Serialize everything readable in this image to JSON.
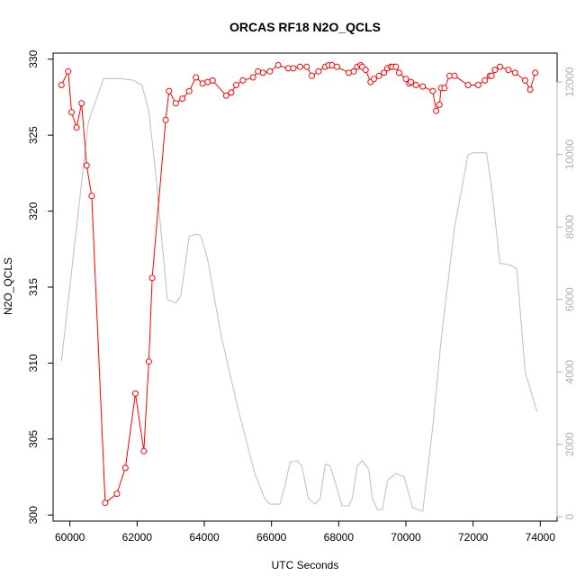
{
  "chart_data": {
    "type": "line",
    "title": "ORCAS RF18 N2O_QCLS",
    "xlabel": "UTC Seconds",
    "ylabel": "N2O_QCLS",
    "xlim": [
      59500,
      74500
    ],
    "ylim": [
      299.6,
      330.4
    ],
    "y2lim": [
      -120,
      12800
    ],
    "x_ticks": [
      60000,
      62000,
      64000,
      66000,
      68000,
      70000,
      72000,
      74000
    ],
    "y_ticks": [
      300,
      305,
      310,
      315,
      320,
      325,
      330
    ],
    "y2_ticks": [
      0,
      2000,
      4000,
      6000,
      8000,
      10000,
      12000
    ],
    "colors": {
      "n2o": "#ff0000",
      "altitude": "#bebebe",
      "axis": "#000000",
      "right_axis": "#b0b0b0"
    },
    "series": [
      {
        "id": "n2o",
        "style": "line+points",
        "axis": "left",
        "x": [
          59750,
          59950,
          60050,
          60200,
          60350,
          60500,
          60650,
          61050,
          61400,
          61650,
          61950,
          62200,
          62350,
          62450,
          62850,
          62950,
          63150,
          63350,
          63550,
          63750,
          63950,
          64100,
          64250,
          64650,
          64800,
          64950,
          65150,
          65450,
          65600,
          65750,
          65950,
          66200,
          66500,
          66650,
          66850,
          67050,
          67200,
          67400,
          67600,
          67700,
          67800,
          67950,
          68300,
          68450,
          68550,
          68650,
          68700,
          68800,
          68950,
          69050,
          69200,
          69350,
          69450,
          69550,
          69600,
          69700,
          69800,
          70000,
          70100,
          70150,
          70300,
          70500,
          70800,
          70900,
          71000,
          71050,
          71150,
          71300,
          71450,
          71850,
          72150,
          72350,
          72500,
          72550,
          72650,
          72800,
          73050,
          73250,
          73550,
          73700,
          73850
        ],
        "y": [
          328.3,
          329.2,
          326.5,
          325.5,
          327.1,
          323.0,
          321.0,
          300.8,
          301.4,
          303.1,
          308.0,
          304.2,
          310.1,
          315.6,
          326.0,
          327.9,
          327.1,
          327.4,
          327.9,
          328.8,
          328.4,
          328.5,
          328.6,
          327.6,
          327.8,
          328.3,
          328.6,
          328.8,
          329.2,
          329.1,
          329.2,
          329.6,
          329.4,
          329.4,
          329.5,
          329.5,
          328.9,
          329.2,
          329.5,
          329.6,
          329.6,
          329.5,
          329.1,
          329.2,
          329.5,
          329.6,
          329.5,
          329.3,
          328.5,
          328.7,
          328.9,
          329.1,
          329.4,
          329.5,
          329.5,
          329.5,
          329.1,
          328.7,
          328.4,
          328.5,
          328.3,
          328.2,
          327.9,
          326.6,
          327.0,
          328.1,
          328.1,
          328.9,
          328.9,
          328.3,
          328.3,
          328.6,
          328.9,
          328.9,
          329.3,
          329.5,
          329.3,
          329.1,
          328.6,
          328.0,
          329.1
        ]
      },
      {
        "id": "altitude",
        "style": "line",
        "axis": "right",
        "x": [
          59750,
          60200,
          60550,
          60700,
          61000,
          61500,
          61900,
          62150,
          62350,
          62550,
          62900,
          63150,
          63300,
          63550,
          63800,
          63900,
          64100,
          64500,
          65000,
          65500,
          65800,
          65950,
          66250,
          66400,
          66550,
          66750,
          66900,
          67100,
          67300,
          67450,
          67600,
          67750,
          68100,
          68300,
          68400,
          68550,
          68700,
          68900,
          69000,
          69150,
          69300,
          69450,
          69700,
          69950,
          70200,
          70500,
          70800,
          71050,
          71450,
          71850,
          72000,
          72400,
          72550,
          72800,
          73100,
          73300,
          73550,
          73900
        ],
        "y": [
          4300,
          8000,
          10900,
          11300,
          12100,
          12100,
          12050,
          11900,
          11200,
          9500,
          6000,
          5900,
          6100,
          7750,
          7800,
          7750,
          7100,
          5000,
          3000,
          1200,
          500,
          350,
          350,
          850,
          1500,
          1550,
          1400,
          500,
          350,
          500,
          1450,
          1400,
          300,
          300,
          500,
          1400,
          1550,
          1300,
          500,
          200,
          200,
          1000,
          1200,
          1100,
          250,
          150,
          2500,
          4900,
          8000,
          10000,
          10050,
          10050,
          9100,
          7000,
          6950,
          6850,
          4000,
          2900
        ]
      }
    ]
  }
}
